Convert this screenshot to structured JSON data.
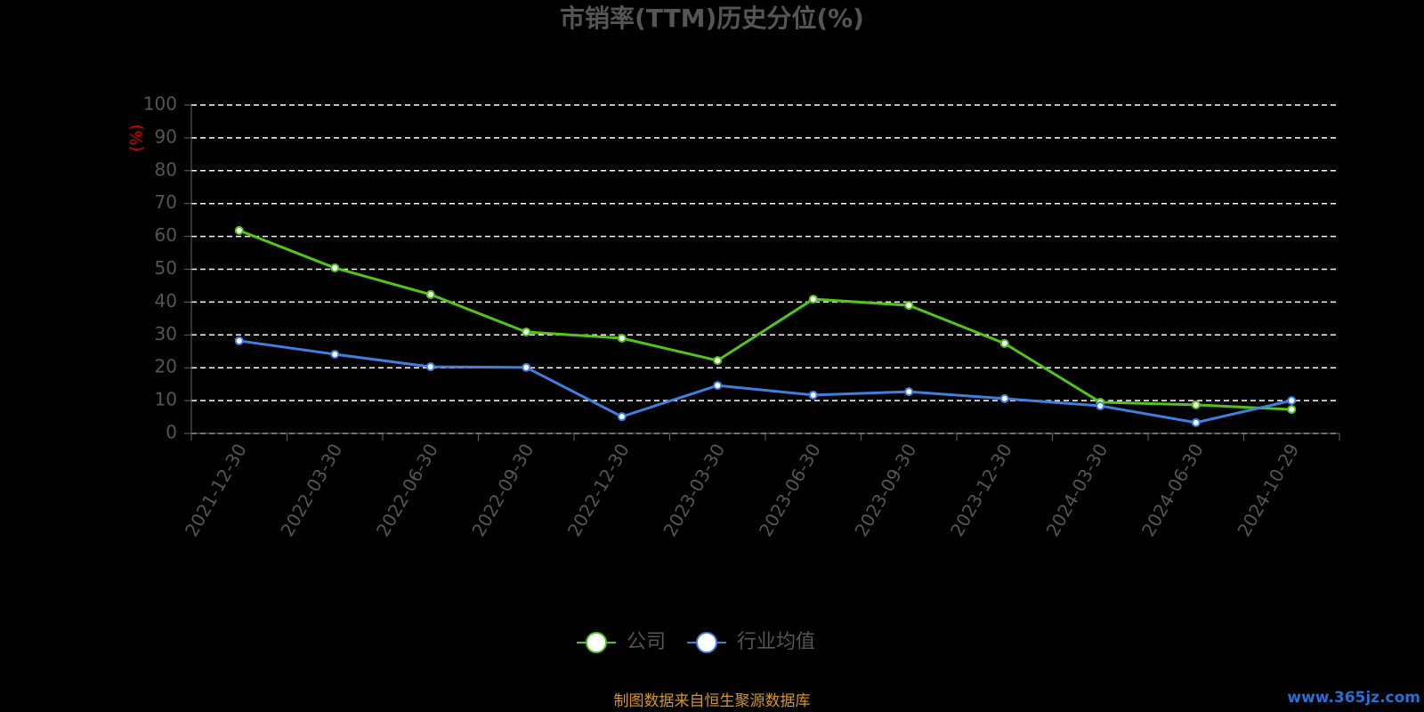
{
  "chart_data": {
    "type": "line",
    "title": "市销率(TTM)历史分位(%)",
    "y_label": "(%)",
    "categories": [
      "2021-12-30",
      "2022-03-30",
      "2022-06-30",
      "2022-09-30",
      "2022-12-30",
      "2023-03-30",
      "2023-06-30",
      "2023-09-30",
      "2023-12-30",
      "2024-03-30",
      "2024-06-30",
      "2024-10-29"
    ],
    "series": [
      {
        "name": "公司",
        "color": "#52c41a",
        "values": [
          61.8,
          50.4,
          42.3,
          30.9,
          29,
          22.2,
          40.9,
          39,
          27.4,
          9.5,
          8.7,
          7.3
        ]
      },
      {
        "name": "行业均值",
        "color": "#3f7fe0",
        "values": [
          28.2,
          24.1,
          20.3,
          20.1,
          5.1,
          14.6,
          11.7,
          12.7,
          10.6,
          8.4,
          3.3,
          10
        ]
      }
    ],
    "ylim": [
      0,
      100
    ],
    "yticks": [
      0,
      10,
      20,
      30,
      40,
      50,
      60,
      70,
      80,
      90,
      100
    ],
    "grid": true,
    "legend": "bottom",
    "source": "制图数据来自恒生聚源数据库",
    "watermark": "www.365jz.com"
  }
}
